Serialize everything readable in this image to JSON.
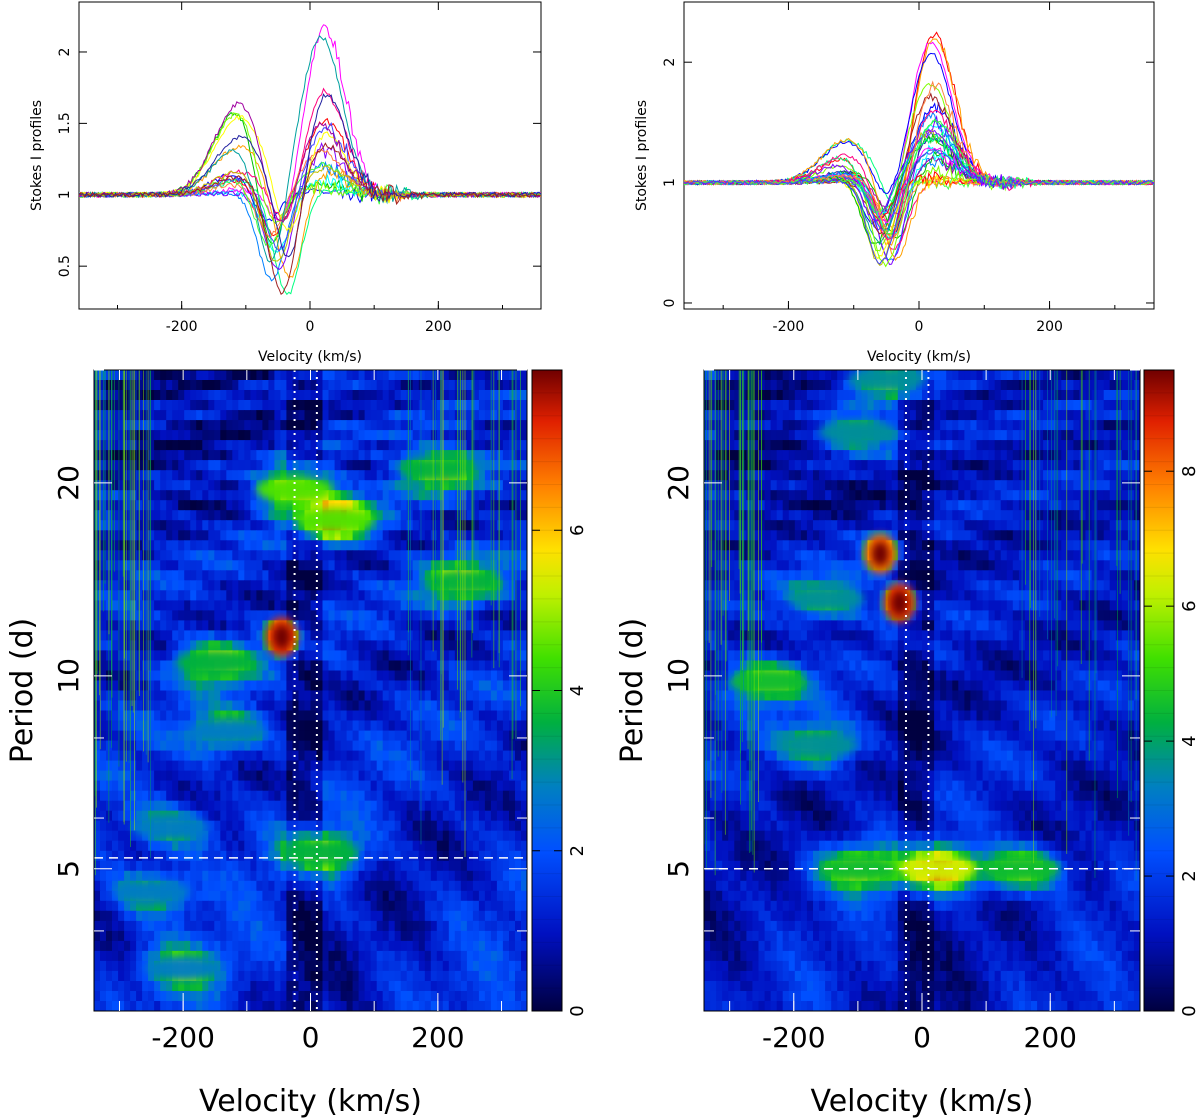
{
  "chart_data": [
    {
      "type": "line",
      "panel": "top-left",
      "ylabel": "Stokes I profiles",
      "xlabel": "Velocity (km/s)",
      "xlim": [
        -360,
        360
      ],
      "ylim": [
        0.2,
        2.35
      ],
      "xticks": [
        "-200",
        "0",
        "200"
      ],
      "yticks": [
        "0.5",
        "1",
        "1.5",
        "2"
      ],
      "n_profiles": 20
    },
    {
      "type": "line",
      "panel": "top-right",
      "ylabel": "Stokes I profiles",
      "xlabel": "Velocity (km/s)",
      "xlim": [
        -360,
        360
      ],
      "ylim": [
        -0.05,
        2.5
      ],
      "xticks": [
        "-200",
        "0",
        "200"
      ],
      "yticks": [
        "0",
        "1",
        "2"
      ],
      "n_profiles": 34
    },
    {
      "type": "heatmap",
      "panel": "bottom-left",
      "ylabel": "Period (d)",
      "xlabel": "Velocity (km/s)",
      "xlim": [
        -340,
        340
      ],
      "yticks": [
        "5",
        "10",
        "20"
      ],
      "xticks": [
        "-200",
        "0",
        "200"
      ],
      "colorbar_ticks": [
        "0",
        "2",
        "4",
        "6"
      ],
      "colorbar_max": 8,
      "marked_period": 5.2,
      "marked_velocities": [
        -25,
        10
      ],
      "peaks": [
        {
          "v": -45,
          "p": 11.5,
          "z": 8
        },
        {
          "v": -25,
          "p": 19.5,
          "z": 5
        },
        {
          "v": 40,
          "p": 17.5,
          "z": 5
        },
        {
          "v": -150,
          "p": 10.5,
          "z": 4
        },
        {
          "v": 200,
          "p": 21,
          "z": 4
        },
        {
          "v": 240,
          "p": 14,
          "z": 4
        },
        {
          "v": -130,
          "p": 8.2,
          "z": 3
        },
        {
          "v": -220,
          "p": 5.8,
          "z": 3
        },
        {
          "v": 15,
          "p": 5.3,
          "z": 4
        },
        {
          "v": -250,
          "p": 4.6,
          "z": 3
        },
        {
          "v": -200,
          "p": 3.5,
          "z": 3
        }
      ]
    },
    {
      "type": "heatmap",
      "panel": "bottom-right",
      "ylabel": "Period (d)",
      "xlabel": "Velocity (km/s)",
      "xlim": [
        -340,
        340
      ],
      "yticks": [
        "5",
        "10",
        "20"
      ],
      "xticks": [
        "-200",
        "0",
        "200"
      ],
      "colorbar_ticks": [
        "0",
        "2",
        "4",
        "6",
        "8"
      ],
      "colorbar_max": 9.5,
      "marked_period": 5.0,
      "marked_velocities": [
        -25,
        10
      ],
      "peaks": [
        {
          "v": -65,
          "p": 15.5,
          "z": 9
        },
        {
          "v": -35,
          "p": 13,
          "z": 9.5
        },
        {
          "v": -240,
          "p": 9.8,
          "z": 5
        },
        {
          "v": -150,
          "p": 13.2,
          "z": 4
        },
        {
          "v": -160,
          "p": 7.8,
          "z": 4
        },
        {
          "v": -100,
          "p": 5.0,
          "z": 5
        },
        {
          "v": 25,
          "p": 5.0,
          "z": 7
        },
        {
          "v": 155,
          "p": 5.0,
          "z": 5
        },
        {
          "v": -100,
          "p": 24,
          "z": 4
        },
        {
          "v": -55,
          "p": 29,
          "z": 4
        }
      ]
    }
  ]
}
